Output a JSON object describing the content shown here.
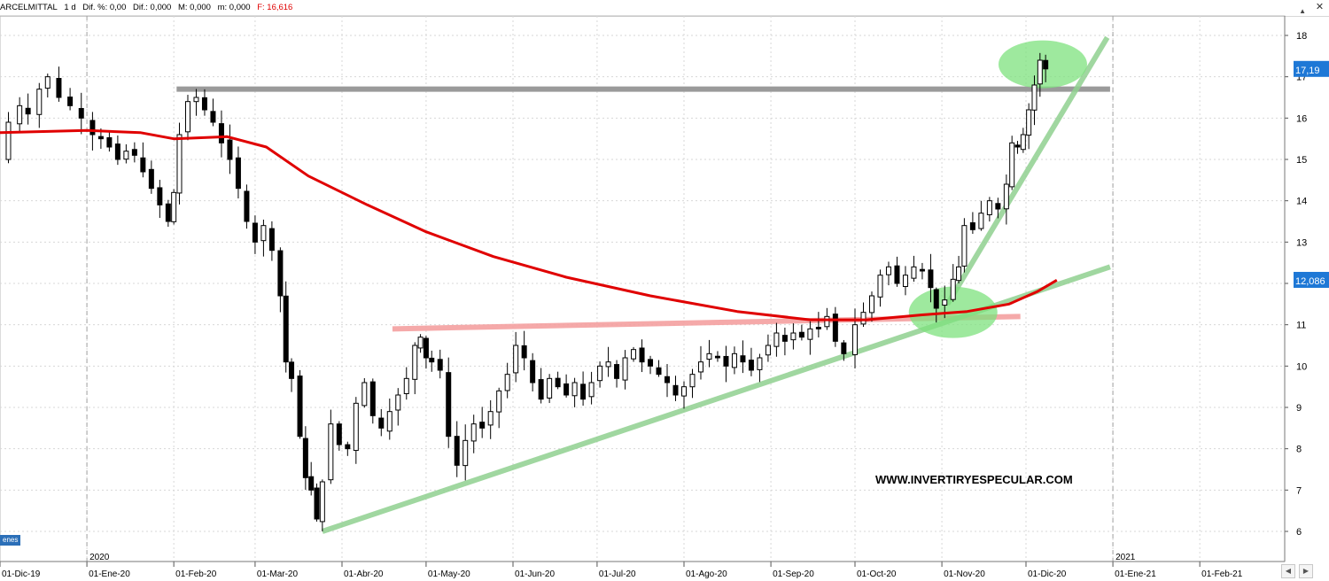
{
  "toolbar": {
    "symbol": "ARCELMITTAL",
    "interval": "1 d",
    "dif_pct": "Dif. %: 0,00",
    "dif": "Dif.: 0,000",
    "m": "M: 0,000",
    "m2": "m: 0,000",
    "f_label": "F:",
    "f_value": "16,616",
    "close_icon": "close-icon",
    "scroll_icon": "triangle-up-icon"
  },
  "tag_left": "enes",
  "watermark": "WWW.INVERTIRYESPECULAR.COM",
  "colors": {
    "candle_up": "#ffffff",
    "candle_down": "#000000",
    "sma": "#e00000",
    "resistance": "#9a9a9a",
    "neckline": "#f4a0a0",
    "trend": "#8fd08f",
    "highlight": "#7ee27e",
    "price_tag_blue": "#1e78d6"
  },
  "chart_data": {
    "type": "candlestick",
    "title": "",
    "y_ticks": [
      "6",
      "7",
      "8",
      "9",
      "10",
      "11",
      "12",
      "13",
      "14",
      "15",
      "16",
      "17",
      "18"
    ],
    "ylim": [
      5.6,
      18.3
    ],
    "x_ticks": [
      {
        "label": "01-Dic-19",
        "date": "2019-12-01"
      },
      {
        "label": "01-Ene-20",
        "date": "2020-01-01"
      },
      {
        "label": "01-Feb-20",
        "date": "2020-02-01"
      },
      {
        "label": "01-Mar-20",
        "date": "2020-03-01"
      },
      {
        "label": "01-Abr-20",
        "date": "2020-04-01"
      },
      {
        "label": "01-May-20",
        "date": "2020-05-01"
      },
      {
        "label": "01-Jun-20",
        "date": "2020-06-01"
      },
      {
        "label": "01-Jul-20",
        "date": "2020-07-01"
      },
      {
        "label": "01-Ago-20",
        "date": "2020-08-01"
      },
      {
        "label": "01-Sep-20",
        "date": "2020-09-01"
      },
      {
        "label": "01-Oct-20",
        "date": "2020-10-01"
      },
      {
        "label": "01-Nov-20",
        "date": "2020-11-01"
      },
      {
        "label": "01-Dic-20",
        "date": "2020-12-01"
      },
      {
        "label": "01-Ene-21",
        "date": "2021-01-01"
      },
      {
        "label": "01-Feb-21",
        "date": "2021-02-01"
      }
    ],
    "year_markers": [
      {
        "label": "2020",
        "date": "2020-01-01"
      },
      {
        "label": "2021",
        "date": "2021-01-01"
      }
    ],
    "price_tags": [
      {
        "label": "17,19",
        "value": 17.19,
        "color": "#1e78d6"
      },
      {
        "label": "12,086",
        "value": 12.086,
        "color": "#1e78d6"
      }
    ],
    "close_series": {
      "name": "",
      "points": [
        [
          "2019-12-01",
          15.0
        ],
        [
          "2019-12-04",
          15.9
        ],
        [
          "2019-12-08",
          16.3
        ],
        [
          "2019-12-11",
          16.1
        ],
        [
          "2019-12-15",
          16.7
        ],
        [
          "2019-12-18",
          17.0
        ],
        [
          "2019-12-22",
          16.5
        ],
        [
          "2019-12-26",
          16.3
        ],
        [
          "2019-12-30",
          16.0
        ],
        [
          "2020-01-03",
          15.6
        ],
        [
          "2020-01-06",
          15.5
        ],
        [
          "2020-01-09",
          15.3
        ],
        [
          "2020-01-12",
          15.0
        ],
        [
          "2020-01-15",
          15.2
        ],
        [
          "2020-01-18",
          15.1
        ],
        [
          "2020-01-21",
          14.7
        ],
        [
          "2020-01-24",
          14.3
        ],
        [
          "2020-01-27",
          13.9
        ],
        [
          "2020-01-30",
          13.5
        ],
        [
          "2020-02-01",
          14.2
        ],
        [
          "2020-02-03",
          15.6
        ],
        [
          "2020-02-06",
          16.4
        ],
        [
          "2020-02-09",
          16.5
        ],
        [
          "2020-02-12",
          16.2
        ],
        [
          "2020-02-15",
          15.9
        ],
        [
          "2020-02-18",
          15.4
        ],
        [
          "2020-02-21",
          15.0
        ],
        [
          "2020-02-24",
          14.3
        ],
        [
          "2020-02-27",
          13.5
        ],
        [
          "2020-03-01",
          13.0
        ],
        [
          "2020-03-04",
          13.4
        ],
        [
          "2020-03-07",
          12.8
        ],
        [
          "2020-03-10",
          11.7
        ],
        [
          "2020-03-12",
          10.1
        ],
        [
          "2020-03-14",
          9.7
        ],
        [
          "2020-03-17",
          8.3
        ],
        [
          "2020-03-19",
          7.3
        ],
        [
          "2020-03-21",
          7.0
        ],
        [
          "2020-03-23",
          6.3
        ],
        [
          "2020-03-25",
          7.2
        ],
        [
          "2020-03-28",
          8.6
        ],
        [
          "2020-03-31",
          8.1
        ],
        [
          "2020-04-03",
          8.0
        ],
        [
          "2020-04-06",
          9.1
        ],
        [
          "2020-04-09",
          9.6
        ],
        [
          "2020-04-12",
          8.8
        ],
        [
          "2020-04-15",
          8.5
        ],
        [
          "2020-04-18",
          8.9
        ],
        [
          "2020-04-21",
          9.3
        ],
        [
          "2020-04-24",
          9.7
        ],
        [
          "2020-04-27",
          10.5
        ],
        [
          "2020-04-29",
          10.7
        ],
        [
          "2020-05-01",
          10.2
        ],
        [
          "2020-05-03",
          10.1
        ],
        [
          "2020-05-06",
          9.9
        ],
        [
          "2020-05-09",
          8.3
        ],
        [
          "2020-05-12",
          7.6
        ],
        [
          "2020-05-15",
          8.2
        ],
        [
          "2020-05-18",
          8.6
        ],
        [
          "2020-05-21",
          8.5
        ],
        [
          "2020-05-24",
          8.9
        ],
        [
          "2020-05-27",
          9.4
        ],
        [
          "2020-05-30",
          9.8
        ],
        [
          "2020-06-02",
          10.5
        ],
        [
          "2020-06-05",
          10.2
        ],
        [
          "2020-06-08",
          9.6
        ],
        [
          "2020-06-11",
          9.2
        ],
        [
          "2020-06-14",
          9.7
        ],
        [
          "2020-06-17",
          9.5
        ],
        [
          "2020-06-20",
          9.3
        ],
        [
          "2020-06-23",
          9.6
        ],
        [
          "2020-06-26",
          9.2
        ],
        [
          "2020-06-29",
          9.6
        ],
        [
          "2020-07-02",
          10.0
        ],
        [
          "2020-07-05",
          10.1
        ],
        [
          "2020-07-08",
          9.7
        ],
        [
          "2020-07-11",
          10.2
        ],
        [
          "2020-07-14",
          10.4
        ],
        [
          "2020-07-17",
          10.1
        ],
        [
          "2020-07-20",
          10.0
        ],
        [
          "2020-07-23",
          9.8
        ],
        [
          "2020-07-26",
          9.6
        ],
        [
          "2020-07-29",
          9.3
        ],
        [
          "2020-08-01",
          9.5
        ],
        [
          "2020-08-04",
          9.8
        ],
        [
          "2020-08-07",
          10.1
        ],
        [
          "2020-08-10",
          10.3
        ],
        [
          "2020-08-13",
          10.2
        ],
        [
          "2020-08-16",
          10.0
        ],
        [
          "2020-08-19",
          10.3
        ],
        [
          "2020-08-22",
          10.1
        ],
        [
          "2020-08-25",
          9.9
        ],
        [
          "2020-08-28",
          10.2
        ],
        [
          "2020-08-31",
          10.5
        ],
        [
          "2020-09-03",
          10.8
        ],
        [
          "2020-09-06",
          10.6
        ],
        [
          "2020-09-09",
          10.8
        ],
        [
          "2020-09-12",
          10.7
        ],
        [
          "2020-09-15",
          10.9
        ],
        [
          "2020-09-18",
          10.9
        ],
        [
          "2020-09-21",
          11.2
        ],
        [
          "2020-09-24",
          10.6
        ],
        [
          "2020-09-27",
          10.3
        ],
        [
          "2020-10-01",
          11.0
        ],
        [
          "2020-10-04",
          11.3
        ],
        [
          "2020-10-07",
          11.7
        ],
        [
          "2020-10-10",
          12.2
        ],
        [
          "2020-10-13",
          12.4
        ],
        [
          "2020-10-16",
          12.0
        ],
        [
          "2020-10-19",
          12.2
        ],
        [
          "2020-10-22",
          12.4
        ],
        [
          "2020-10-25",
          12.3
        ],
        [
          "2020-10-28",
          11.9
        ],
        [
          "2020-10-30",
          11.4
        ],
        [
          "2020-11-02",
          11.6
        ],
        [
          "2020-11-05",
          12.1
        ],
        [
          "2020-11-07",
          12.4
        ],
        [
          "2020-11-09",
          13.4
        ],
        [
          "2020-11-12",
          13.3
        ],
        [
          "2020-11-15",
          13.7
        ],
        [
          "2020-11-18",
          14.0
        ],
        [
          "2020-11-21",
          13.8
        ],
        [
          "2020-11-24",
          14.4
        ],
        [
          "2020-11-26",
          15.4
        ],
        [
          "2020-11-28",
          15.3
        ],
        [
          "2020-11-30",
          15.6
        ],
        [
          "2020-12-02",
          16.2
        ],
        [
          "2020-12-04",
          16.8
        ],
        [
          "2020-12-06",
          17.4
        ],
        [
          "2020-12-08",
          17.19
        ]
      ]
    },
    "sma_series": {
      "name": "",
      "points": [
        [
          "2019-12-01",
          15.65
        ],
        [
          "2020-01-01",
          15.7
        ],
        [
          "2020-01-20",
          15.65
        ],
        [
          "2020-02-01",
          15.5
        ],
        [
          "2020-02-20",
          15.55
        ],
        [
          "2020-03-05",
          15.3
        ],
        [
          "2020-03-20",
          14.6
        ],
        [
          "2020-04-10",
          13.9
        ],
        [
          "2020-05-01",
          13.25
        ],
        [
          "2020-05-25",
          12.65
        ],
        [
          "2020-06-20",
          12.15
        ],
        [
          "2020-07-20",
          11.7
        ],
        [
          "2020-08-20",
          11.32
        ],
        [
          "2020-09-15",
          11.12
        ],
        [
          "2020-10-05",
          11.12
        ],
        [
          "2020-10-25",
          11.24
        ],
        [
          "2020-11-10",
          11.32
        ],
        [
          "2020-11-25",
          11.5
        ],
        [
          "2020-12-05",
          11.8
        ],
        [
          "2020-12-12",
          12.08
        ]
      ]
    },
    "trendlines": [
      {
        "kind": "resistance",
        "from": [
          "2020-02-02",
          16.7
        ],
        "to": [
          "2020-12-31",
          16.7
        ]
      },
      {
        "kind": "neckline",
        "from": [
          "2020-04-19",
          10.9
        ],
        "to": [
          "2020-11-29",
          11.2
        ]
      },
      {
        "kind": "support",
        "from": [
          "2020-03-25",
          6.0
        ],
        "to": [
          "2020-12-31",
          12.4
        ]
      },
      {
        "kind": "support-steep",
        "from": [
          "2020-11-03",
          11.5
        ],
        "to": [
          "2020-12-30",
          17.95
        ]
      }
    ],
    "highlights": [
      {
        "center": [
          "2020-11-05",
          11.3
        ]
      },
      {
        "center": [
          "2020-12-07",
          17.3
        ]
      }
    ]
  }
}
